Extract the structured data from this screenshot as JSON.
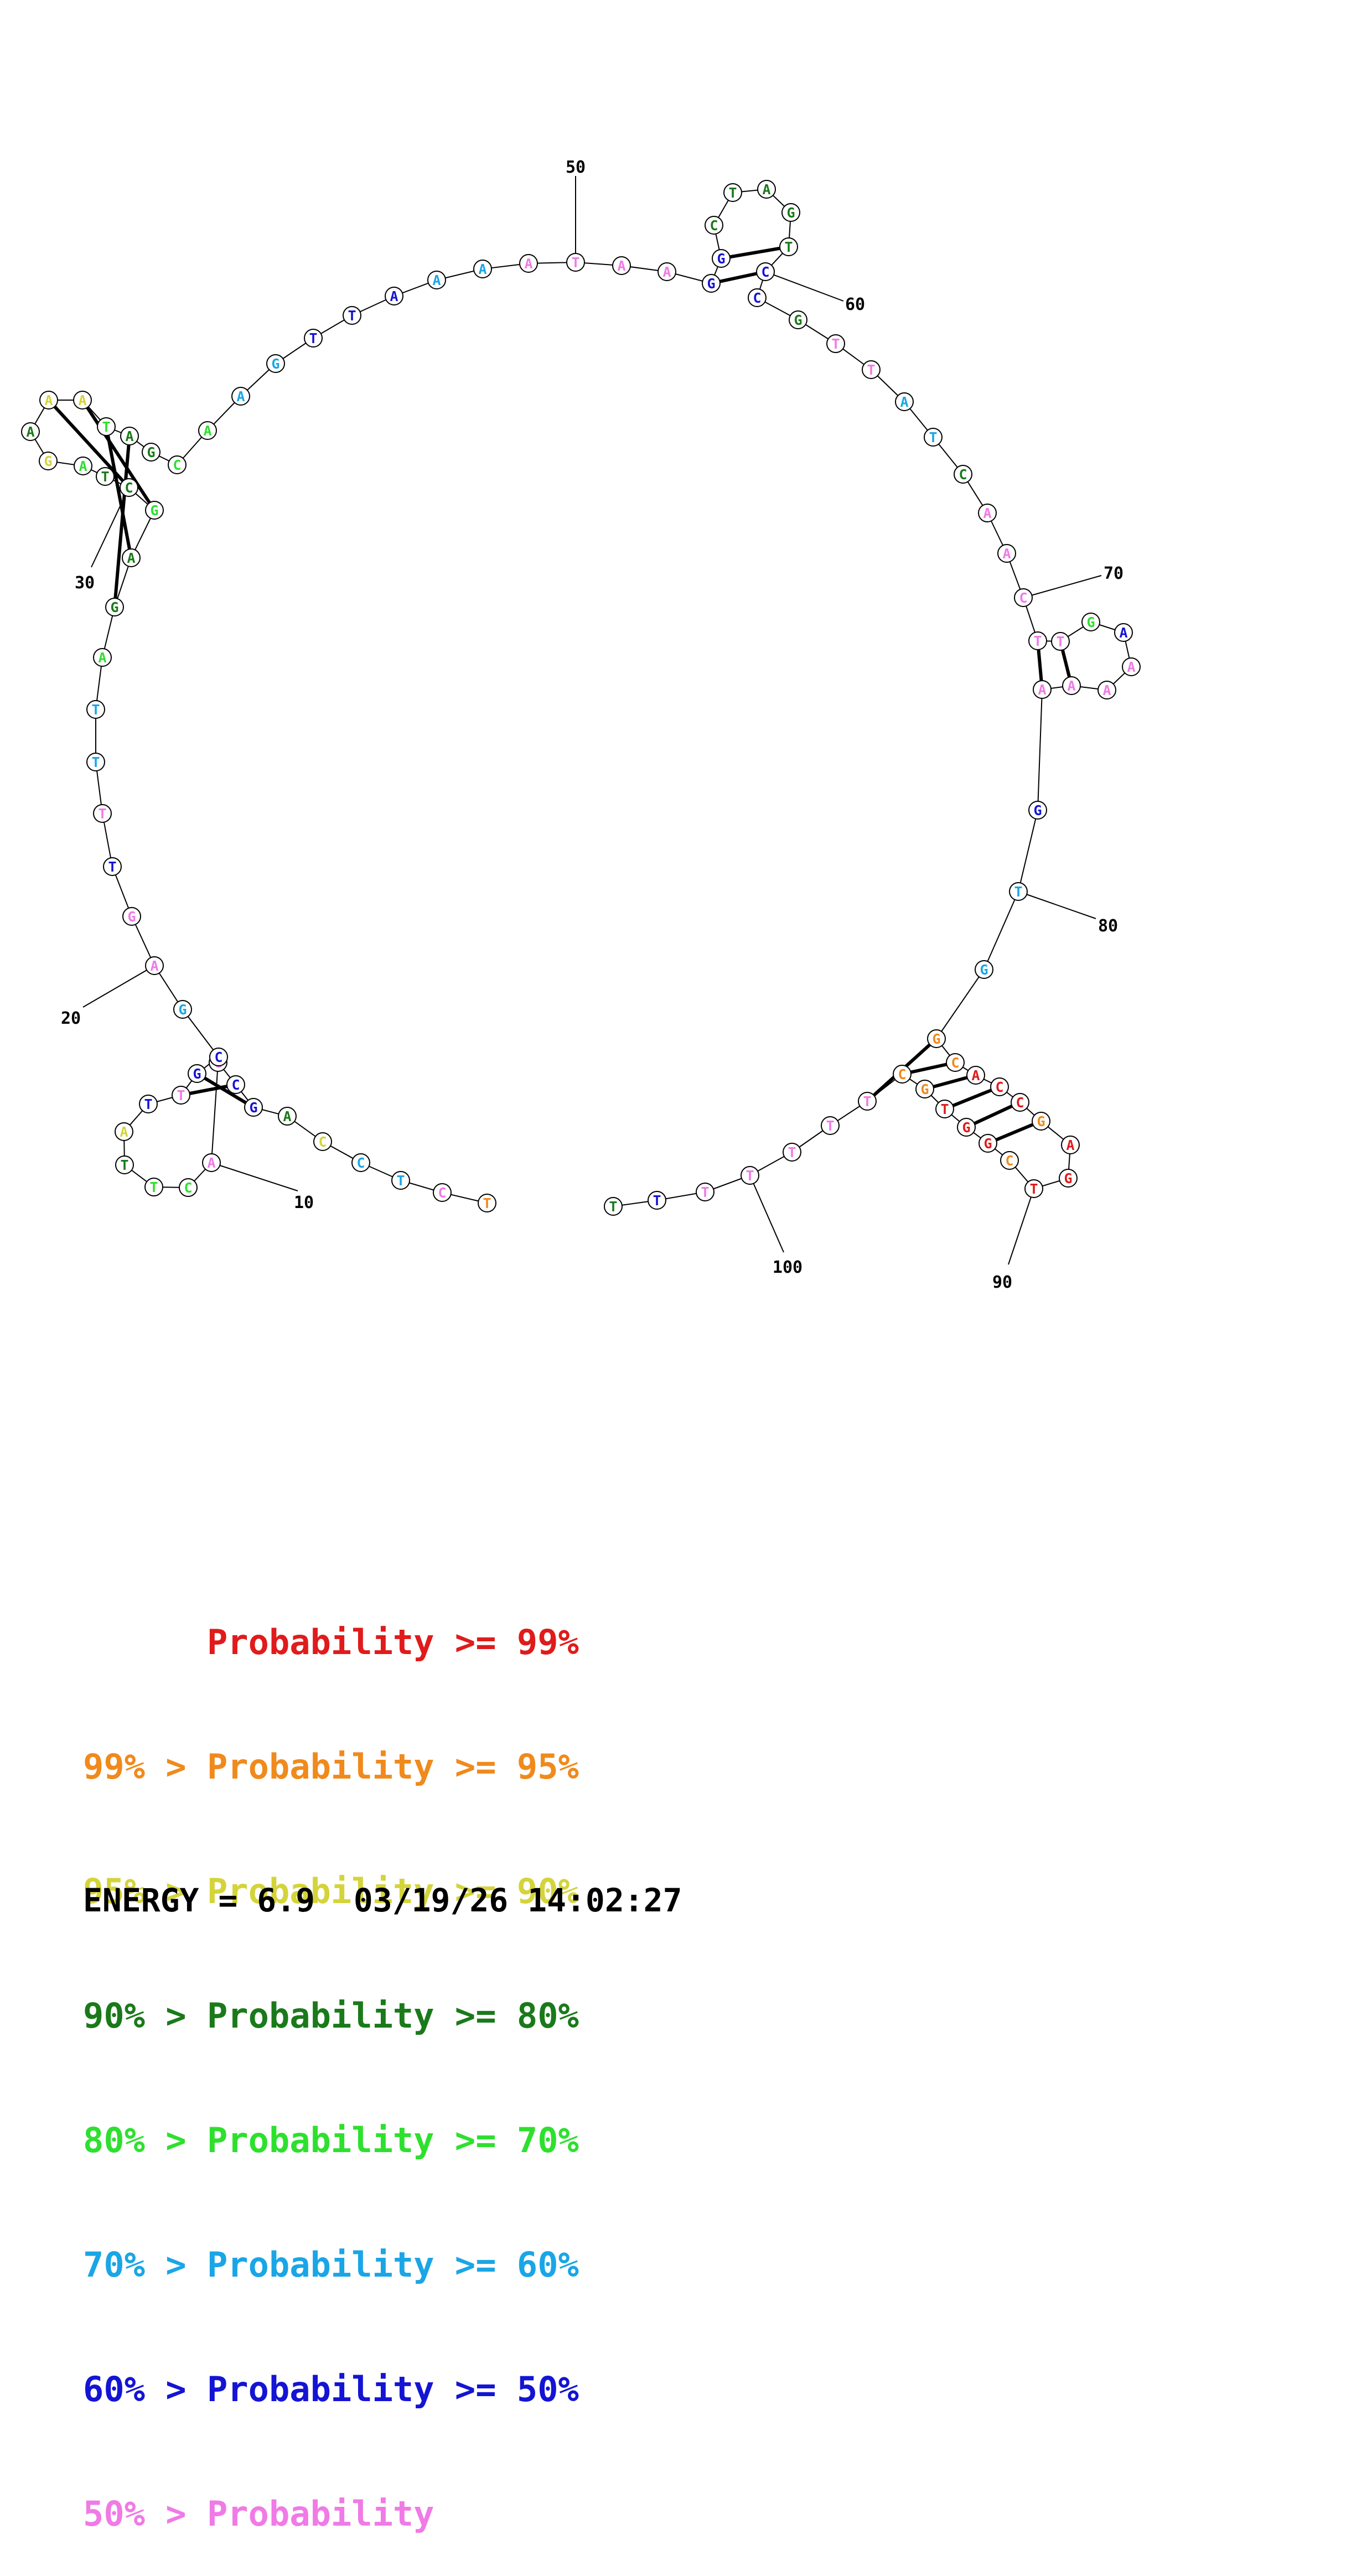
{
  "legend": [
    {
      "text": "      Probability >= 99%",
      "color": "#e01b1b"
    },
    {
      "text": "99% > Probability >= 95%",
      "color": "#f08a1c"
    },
    {
      "text": "95% > Probability >= 90%",
      "color": "#d4d43a"
    },
    {
      "text": "90% > Probability >= 80%",
      "color": "#1a7a1a"
    },
    {
      "text": "80% > Probability >= 70%",
      "color": "#2ee02e"
    },
    {
      "text": "70% > Probability >= 60%",
      "color": "#1aa6e6"
    },
    {
      "text": "60% > Probability >= 50%",
      "color": "#1414d4"
    },
    {
      "text": "50% > Probability",
      "color": "#f07ae6"
    }
  ],
  "footer": {
    "energy_label": "ENERGY = 6.9",
    "timestamp": "03/19/26 14:02:27"
  },
  "structure": {
    "tick_labels": [
      "10",
      "20",
      "30",
      "50",
      "60",
      "70",
      "80",
      "90",
      "100"
    ],
    "nucleotides": [
      {
        "base": "T",
        "color": "#f08a1c"
      },
      {
        "base": "C",
        "color": "#f07ae6"
      },
      {
        "base": "T",
        "color": "#1aa6e6"
      },
      {
        "base": "C",
        "color": "#1aa6e6"
      },
      {
        "base": "C",
        "color": "#d4d43a"
      },
      {
        "base": "A",
        "color": "#1a7a1a"
      },
      {
        "base": "G",
        "color": "#1414d4"
      },
      {
        "base": "C",
        "color": "#1414d4"
      },
      {
        "base": "G",
        "color": "#f07ae6"
      },
      {
        "base": "A",
        "color": "#f07ae6"
      },
      {
        "base": "C",
        "color": "#2ee02e"
      },
      {
        "base": "T",
        "color": "#2ee02e"
      },
      {
        "base": "T",
        "color": "#1a7a1a"
      },
      {
        "base": "A",
        "color": "#d4d43a"
      },
      {
        "base": "T",
        "color": "#1414d4"
      },
      {
        "base": "T",
        "color": "#f07ae6"
      },
      {
        "base": "G",
        "color": "#1414d4"
      },
      {
        "base": "C",
        "color": "#1414d4"
      },
      {
        "base": "G",
        "color": "#1aa6e6"
      },
      {
        "base": "A",
        "color": "#f07ae6"
      },
      {
        "base": "G",
        "color": "#f07ae6"
      },
      {
        "base": "T",
        "color": "#1414d4"
      },
      {
        "base": "T",
        "color": "#f07ae6"
      },
      {
        "base": "T",
        "color": "#1aa6e6"
      },
      {
        "base": "T",
        "color": "#1aa6e6"
      },
      {
        "base": "A",
        "color": "#2ee02e"
      },
      {
        "base": "G",
        "color": "#1a7a1a"
      },
      {
        "base": "A",
        "color": "#1a7a1a"
      },
      {
        "base": "G",
        "color": "#2ee02e"
      },
      {
        "base": "C",
        "color": "#1a7a1a"
      },
      {
        "base": "T",
        "color": "#1a7a1a"
      },
      {
        "base": "A",
        "color": "#2ee02e"
      },
      {
        "base": "G",
        "color": "#d4d43a"
      },
      {
        "base": "A",
        "color": "#1a7a1a"
      },
      {
        "base": "A",
        "color": "#d4d43a"
      },
      {
        "base": "A",
        "color": "#d4d43a"
      },
      {
        "base": "T",
        "color": "#2ee02e"
      },
      {
        "base": "A",
        "color": "#1a7a1a"
      },
      {
        "base": "G",
        "color": "#1a7a1a"
      },
      {
        "base": "C",
        "color": "#2ee02e"
      },
      {
        "base": "A",
        "color": "#2ee02e"
      },
      {
        "base": "A",
        "color": "#1aa6e6"
      },
      {
        "base": "G",
        "color": "#1aa6e6"
      },
      {
        "base": "T",
        "color": "#1414d4"
      },
      {
        "base": "T",
        "color": "#1414d4"
      },
      {
        "base": "A",
        "color": "#1414d4"
      },
      {
        "base": "A",
        "color": "#1aa6e6"
      },
      {
        "base": "A",
        "color": "#1aa6e6"
      },
      {
        "base": "A",
        "color": "#f07ae6"
      },
      {
        "base": "T",
        "color": "#f07ae6"
      },
      {
        "base": "A",
        "color": "#f07ae6"
      },
      {
        "base": "A",
        "color": "#f07ae6"
      },
      {
        "base": "G",
        "color": "#1414d4"
      },
      {
        "base": "G",
        "color": "#1414d4"
      },
      {
        "base": "C",
        "color": "#1a7a1a"
      },
      {
        "base": "T",
        "color": "#1a7a1a"
      },
      {
        "base": "A",
        "color": "#1a7a1a"
      },
      {
        "base": "G",
        "color": "#1a7a1a"
      },
      {
        "base": "T",
        "color": "#1a7a1a"
      },
      {
        "base": "C",
        "color": "#1414d4"
      },
      {
        "base": "C",
        "color": "#1414d4"
      },
      {
        "base": "G",
        "color": "#1a7a1a"
      },
      {
        "base": "T",
        "color": "#f07ae6"
      },
      {
        "base": "T",
        "color": "#f07ae6"
      },
      {
        "base": "A",
        "color": "#1aa6e6"
      },
      {
        "base": "T",
        "color": "#1aa6e6"
      },
      {
        "base": "C",
        "color": "#1a7a1a"
      },
      {
        "base": "A",
        "color": "#f07ae6"
      },
      {
        "base": "A",
        "color": "#f07ae6"
      },
      {
        "base": "C",
        "color": "#f07ae6"
      },
      {
        "base": "T",
        "color": "#f07ae6"
      },
      {
        "base": "T",
        "color": "#f07ae6"
      },
      {
        "base": "G",
        "color": "#2ee02e"
      },
      {
        "base": "A",
        "color": "#1414d4"
      },
      {
        "base": "A",
        "color": "#f07ae6"
      },
      {
        "base": "A",
        "color": "#f07ae6"
      },
      {
        "base": "A",
        "color": "#f07ae6"
      },
      {
        "base": "A",
        "color": "#f07ae6"
      },
      {
        "base": "G",
        "color": "#1414d4"
      },
      {
        "base": "T",
        "color": "#1aa6e6"
      },
      {
        "base": "G",
        "color": "#1aa6e6"
      },
      {
        "base": "G",
        "color": "#f08a1c"
      },
      {
        "base": "C",
        "color": "#f08a1c"
      },
      {
        "base": "A",
        "color": "#e01b1b"
      },
      {
        "base": "C",
        "color": "#e01b1b"
      },
      {
        "base": "C",
        "color": "#e01b1b"
      },
      {
        "base": "G",
        "color": "#f08a1c"
      },
      {
        "base": "A",
        "color": "#e01b1b"
      },
      {
        "base": "G",
        "color": "#e01b1b"
      },
      {
        "base": "T",
        "color": "#e01b1b"
      },
      {
        "base": "C",
        "color": "#f08a1c"
      },
      {
        "base": "G",
        "color": "#e01b1b"
      },
      {
        "base": "G",
        "color": "#e01b1b"
      },
      {
        "base": "T",
        "color": "#e01b1b"
      },
      {
        "base": "G",
        "color": "#f08a1c"
      },
      {
        "base": "C",
        "color": "#f08a1c"
      },
      {
        "base": "T",
        "color": "#f07ae6"
      },
      {
        "base": "T",
        "color": "#f07ae6"
      },
      {
        "base": "T",
        "color": "#f07ae6"
      },
      {
        "base": "T",
        "color": "#f07ae6"
      },
      {
        "base": "T",
        "color": "#f07ae6"
      },
      {
        "base": "T",
        "color": "#1414d4"
      },
      {
        "base": "T",
        "color": "#1a7a1a"
      }
    ],
    "pairs": [
      [
        7,
        17
      ],
      [
        8,
        16
      ],
      [
        27,
        38
      ],
      [
        28,
        37
      ],
      [
        29,
        36
      ],
      [
        30,
        35
      ],
      [
        53,
        60
      ],
      [
        54,
        59
      ],
      [
        71,
        78
      ],
      [
        72,
        77
      ],
      [
        82,
        97
      ],
      [
        83,
        96
      ],
      [
        84,
        95
      ],
      [
        85,
        94
      ],
      [
        86,
        93
      ],
      [
        87,
        92
      ]
    ]
  }
}
